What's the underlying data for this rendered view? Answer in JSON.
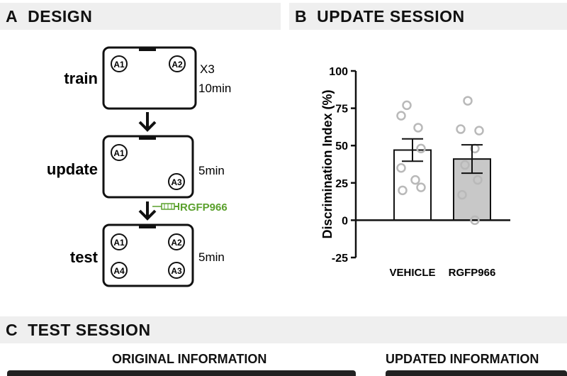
{
  "panel_a": {
    "letter": "A",
    "title": "DESIGN",
    "phases": [
      {
        "label": "train",
        "objects": [
          "A1",
          "A2"
        ],
        "notes": [
          "X3",
          "10min"
        ]
      },
      {
        "label": "update",
        "objects": [
          "A1",
          "A3"
        ],
        "notes": [
          "5min"
        ]
      },
      {
        "label": "test",
        "objects": [
          "A1",
          "A2",
          "A4",
          "A3"
        ],
        "notes": [
          "5min"
        ]
      }
    ],
    "drug_label": "RGFP966",
    "drug_color": "#5aa02c"
  },
  "panel_b": {
    "letter": "B",
    "title": "UPDATE SESSION"
  },
  "panel_c": {
    "letter": "C",
    "title": "TEST SESSION",
    "subtitles": [
      "ORIGINAL INFORMATION",
      "UPDATED INFORMATION"
    ]
  },
  "chart_data": {
    "type": "bar",
    "ylabel": "Discrimination Index (%)",
    "ylim": [
      -25,
      100
    ],
    "yticks": [
      100,
      75,
      50,
      25,
      0,
      -25
    ],
    "categories": [
      "VEHICLE",
      "RGFP966"
    ],
    "values": [
      47,
      41
    ],
    "errors": [
      7.5,
      9.5
    ],
    "bar_colors": [
      "#ffffff",
      "#c8c8c8"
    ],
    "points": [
      [
        77,
        70,
        62,
        48,
        35,
        27,
        22,
        20
      ],
      [
        80,
        61,
        60,
        48,
        37,
        27,
        17,
        0
      ]
    ],
    "point_color": "#b9b9b9"
  }
}
